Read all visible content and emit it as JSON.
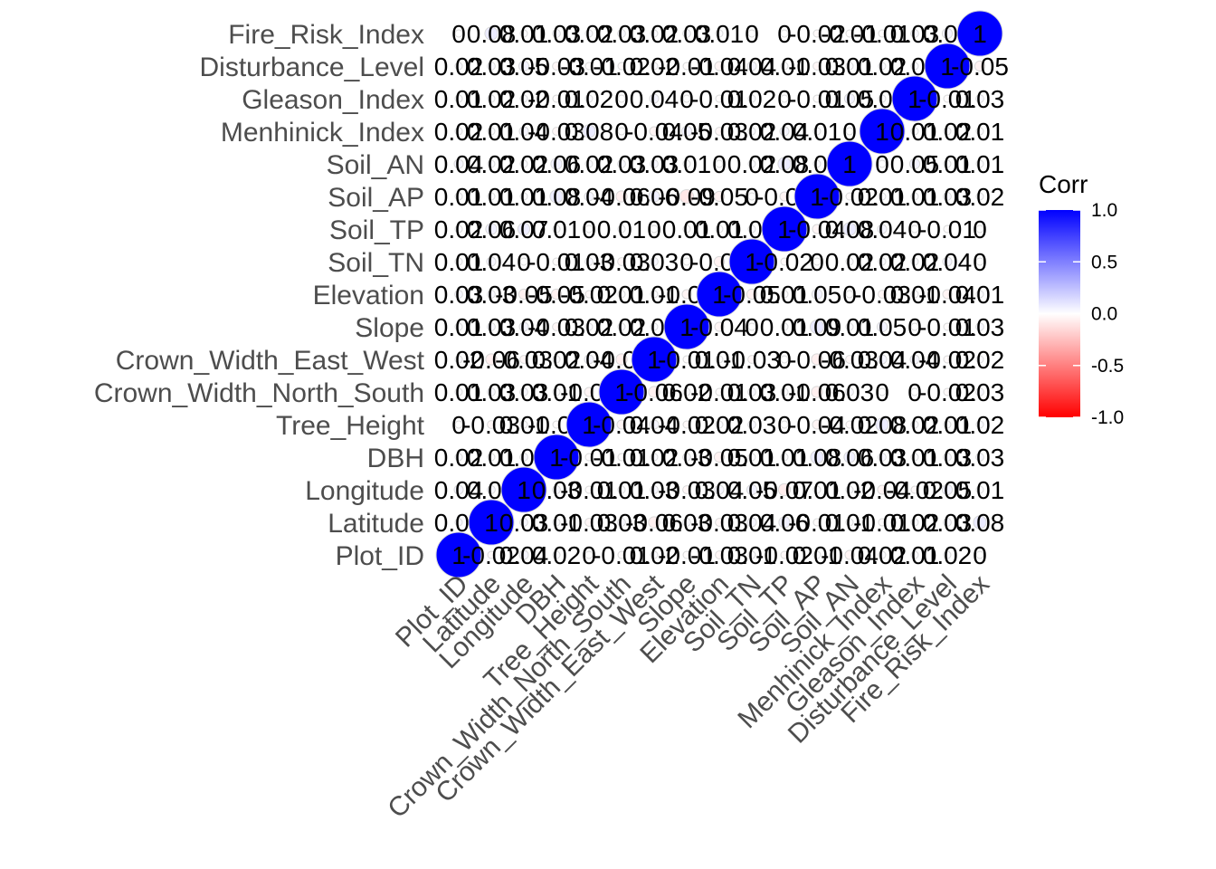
{
  "chart_data": {
    "type": "heatmap",
    "variables": [
      "Plot_ID",
      "Latitude",
      "Longitude",
      "DBH",
      "Tree_Height",
      "Crown_Width_North_South",
      "Crown_Width_East_West",
      "Slope",
      "Elevation",
      "Soil_TN",
      "Soil_TP",
      "Soil_AP",
      "Soil_AN",
      "Menhinick_Index",
      "Gleason_Index",
      "Disturbance_Level",
      "Fire_Risk_Index"
    ],
    "cells": [
      {
        "row": "Plot_ID",
        "values": [
          "1",
          "-0.02",
          "0.04",
          "0.02",
          "0",
          "-0.01",
          "0.02",
          "-0.01",
          "-0.03",
          "0.01",
          "-0.02",
          "0.01",
          "-0.04",
          "0.02",
          "0.01",
          "0.02",
          "0"
        ]
      },
      {
        "row": "Latitude",
        "values": [
          "0.02",
          "1",
          "0.03",
          "0.01",
          "-0.03",
          "0.03",
          "-0.06",
          "0.03",
          "-0.03",
          "0.04",
          "0.06",
          "-0.01",
          "0.01",
          "-0.01",
          "0.02",
          "0.03",
          "0.08"
        ]
      },
      {
        "row": "Longitude",
        "values": [
          "0.04",
          "0.03",
          "1",
          "0.03",
          "-0.01",
          "0.01",
          "0.03",
          "-0.03",
          "0.04",
          "0.05",
          "-0.07",
          "0.01",
          "0.02",
          "-0.04",
          "-0.02",
          "0.05",
          "0.01"
        ]
      },
      {
        "row": "DBH",
        "values": [
          "0.02",
          "0.01",
          "0.03",
          "1",
          "-0.01",
          "-0.01",
          "0.02",
          "0.03",
          "-0.05",
          "0.01",
          "0.01",
          "0.08",
          "0.06",
          "0.03",
          "0.01",
          "0.03",
          "0.03"
        ]
      },
      {
        "row": "Tree_Height",
        "values": [
          "0",
          "-0.03",
          "0.01",
          "-0.01",
          "1",
          "-0.04",
          "0.04",
          "-0.02",
          "0.02",
          "0.03",
          "0",
          "-0.04",
          "-0.02",
          "0.08",
          "0.02",
          "0.01",
          "0.02"
        ]
      },
      {
        "row": "Crown_Width_North_South",
        "values": [
          "0.01",
          "0.03",
          "0.03",
          "0.01",
          "-0.04",
          "1",
          "-0.06",
          "0.02",
          "-0.01",
          "0.03",
          "0.01",
          "-0.06",
          "0.03",
          "0",
          "0",
          "-0.02",
          "0.03"
        ]
      },
      {
        "row": "Crown_Width_East_West",
        "values": [
          "0.02",
          "-0.06",
          "-0.03",
          "0.02",
          "0.04",
          "-0.06",
          "1",
          "-0.01",
          "0.01",
          "-0.03",
          "0",
          "-0.06",
          "-0.03",
          "0.04",
          "0.04",
          "-0.02",
          "0.02"
        ]
      },
      {
        "row": "Slope",
        "values": [
          "0.01",
          "0.03",
          "0.04",
          "-0.03",
          "0.02",
          "0.02",
          "0.01",
          "1",
          "-0.04",
          "0",
          "0.01",
          "0.09",
          "0.01",
          "0.05",
          "0",
          "-0.01",
          "0.03"
        ]
      },
      {
        "row": "Elevation",
        "values": [
          "0.03",
          "0.03",
          "-0.05",
          "-0.05",
          "-0.02",
          "0.01",
          "0.01",
          "-0.04",
          "1",
          "-0.05",
          "0.01",
          "0.05",
          "0",
          "-0.03",
          "0.01",
          "-0.04",
          "0.01"
        ]
      },
      {
        "row": "Soil_TN",
        "values": [
          "0.01",
          "0.04",
          "0",
          "-0.01",
          "0.03",
          "-0.03",
          "0.03",
          "0",
          "-0.05",
          "1",
          "-0.02",
          "0",
          "0.02",
          "0.02",
          "0.02",
          "0.04",
          "0"
        ]
      },
      {
        "row": "Soil_TP",
        "values": [
          "0.02",
          "0.06",
          "0.07",
          "0.01",
          "0",
          "0.01",
          "0",
          "0.01",
          "0.01",
          "0.02",
          "1",
          "-0.04",
          "0.08",
          "0.04",
          "0",
          "-0.01",
          "0"
        ]
      },
      {
        "row": "Soil_AP",
        "values": [
          "0.01",
          "0.01",
          "0.01",
          "0.08",
          "0.04",
          "-0.06",
          "0.06",
          "-0.09",
          "-0.05",
          "0",
          "-0.04",
          "1",
          "-0.02",
          "0.01",
          "0.01",
          "0.03",
          "0.02"
        ]
      },
      {
        "row": "Soil_AN",
        "values": [
          "0.04",
          "0.02",
          "0.02",
          "0.06",
          "0.02",
          "0.03",
          "0.03",
          "0.01",
          "0",
          "0.02",
          "0.08",
          "0.02",
          "1",
          "0",
          "0.05",
          "0.01",
          "0.01"
        ]
      },
      {
        "row": "Menhinick_Index",
        "values": [
          "0.02",
          "0.01",
          "0.04",
          "-0.03",
          "0.08",
          "0",
          "-0.04",
          "0.05",
          "-0.03",
          "0.02",
          "0.04",
          "0.01",
          "0",
          "1",
          "0.01",
          "0.02",
          "0.01"
        ]
      },
      {
        "row": "Gleason_Index",
        "values": [
          "0.01",
          "0.02",
          "0.02",
          "-0.01",
          "0.02",
          "0",
          "0.04",
          "0",
          "-0.01",
          "0.02",
          "0",
          "-0.01",
          "0.05",
          "0.01",
          "1",
          "-0.01",
          "0.03"
        ]
      },
      {
        "row": "Disturbance_Level",
        "values": [
          "0.02",
          "0.03",
          "0.05",
          "-0.03",
          "-0.01",
          "-0.02",
          "0.02",
          "-0.01",
          "-0.04",
          "0.04",
          "0.01",
          "-0.03",
          "0.01",
          "0.02",
          "0.01",
          "1",
          "-0.05"
        ]
      },
      {
        "row": "Fire_Risk_Index",
        "values": [
          "0",
          "0.08",
          "0.01",
          "0.03",
          "0.02",
          "0.03",
          "0.02",
          "0.03",
          "0.01",
          "0",
          "0",
          "-0.02",
          "-0.01",
          "-0.01",
          "0.03",
          "0.05",
          "1"
        ]
      }
    ],
    "legend": {
      "title": "Corr",
      "ticks": [
        "1.0",
        "0.5",
        "0.0",
        "-0.5",
        "-1.0"
      ],
      "tick_values": [
        1.0,
        0.5,
        0.0,
        -0.5,
        -1.0
      ],
      "colors": {
        "high": "#0000FF",
        "mid": "#FFFFFF",
        "low": "#FF0000"
      }
    },
    "marker": "circle"
  }
}
